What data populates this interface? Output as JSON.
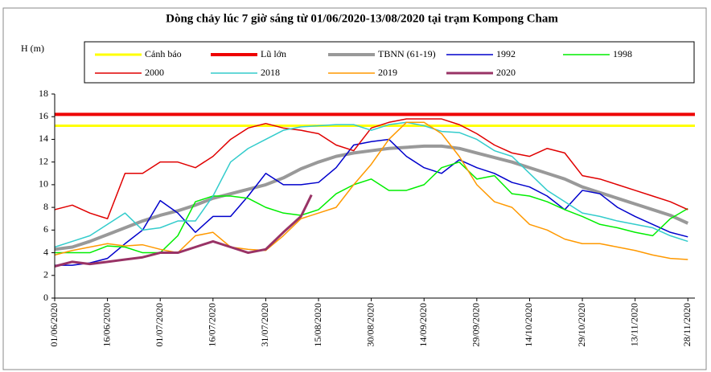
{
  "chart_data": {
    "type": "line",
    "title": "Dòng chảy lúc 7 giờ sáng từ 01/06/2020-13/08/2020 tại trạm Kompong Cham",
    "y_label": "H (m)",
    "x": [
      "2020-06-01",
      "2020-06-06",
      "2020-06-11",
      "2020-06-16",
      "2020-06-21",
      "2020-06-26",
      "2020-07-01",
      "2020-07-06",
      "2020-07-11",
      "2020-07-16",
      "2020-07-21",
      "2020-07-26",
      "2020-07-31",
      "2020-08-05",
      "2020-08-10",
      "2020-08-15",
      "2020-08-20",
      "2020-08-25",
      "2020-08-30",
      "2020-09-04",
      "2020-09-09",
      "2020-09-14",
      "2020-09-19",
      "2020-09-24",
      "2020-09-29",
      "2020-10-04",
      "2020-10-09",
      "2020-10-14",
      "2020-10-19",
      "2020-10-24",
      "2020-10-29",
      "2020-11-03",
      "2020-11-08",
      "2020-11-13",
      "2020-11-18",
      "2020-11-23",
      "2020-11-28"
    ],
    "xlim": [
      "2020-06-01",
      "2020-11-30"
    ],
    "xticks": [
      {
        "value": "2020-06-01",
        "label": "01/06/2020"
      },
      {
        "value": "2020-06-16",
        "label": "16/06/2020"
      },
      {
        "value": "2020-07-01",
        "label": "01/07/2020"
      },
      {
        "value": "2020-07-16",
        "label": "16/07/2020"
      },
      {
        "value": "2020-07-31",
        "label": "31/07/2020"
      },
      {
        "value": "2020-08-15",
        "label": "15/08/2020"
      },
      {
        "value": "2020-08-30",
        "label": "30/08/2020"
      },
      {
        "value": "2020-09-14",
        "label": "14/09/2020"
      },
      {
        "value": "2020-09-29",
        "label": "29/09/2020"
      },
      {
        "value": "2020-10-14",
        "label": "14/10/2020"
      },
      {
        "value": "2020-10-29",
        "label": "29/10/2020"
      },
      {
        "value": "2020-11-13",
        "label": "13/11/2020"
      },
      {
        "value": "2020-11-28",
        "label": "28/11/2020"
      }
    ],
    "ylim": [
      0,
      18
    ],
    "yticks": [
      0,
      2,
      4,
      6,
      8,
      10,
      12,
      14,
      16,
      18
    ],
    "grid": false,
    "series": [
      {
        "name": "Cảnh báo",
        "color": "#ffff00",
        "width": 3,
        "level": 15.2
      },
      {
        "name": "Lũ lớn",
        "color": "#ee0000",
        "width": 4,
        "level": 16.2
      },
      {
        "name": "TBNN (61-19)",
        "color": "#999999",
        "width": 4,
        "values": [
          4.3,
          4.5,
          5.0,
          5.6,
          6.2,
          6.8,
          7.3,
          7.7,
          8.2,
          8.8,
          9.2,
          9.6,
          10.0,
          10.6,
          11.4,
          12.0,
          12.5,
          12.8,
          13.0,
          13.2,
          13.3,
          13.4,
          13.4,
          13.2,
          12.8,
          12.4,
          12.0,
          11.5,
          11.0,
          10.5,
          9.8,
          9.3,
          8.8,
          8.3,
          7.8,
          7.3,
          6.6
        ]
      },
      {
        "name": "1992",
        "color": "#0000cc",
        "width": 1.5,
        "values": [
          2.9,
          2.9,
          3.1,
          3.5,
          4.8,
          6.0,
          8.6,
          7.5,
          5.8,
          7.2,
          7.2,
          9.0,
          11.0,
          10.0,
          10.0,
          10.2,
          11.5,
          13.5,
          13.8,
          14.0,
          12.5,
          11.5,
          11.0,
          12.2,
          11.5,
          11.0,
          10.2,
          9.8,
          9.0,
          7.8,
          9.5,
          9.2,
          8.0,
          7.2,
          6.5,
          5.8,
          5.4
        ]
      },
      {
        "name": "1998",
        "color": "#00ee00",
        "width": 1.5,
        "values": [
          4.0,
          4.0,
          4.0,
          4.6,
          4.5,
          4.0,
          4.0,
          5.5,
          8.5,
          9.0,
          9.0,
          8.8,
          8.0,
          7.5,
          7.3,
          7.8,
          9.2,
          10.0,
          10.5,
          9.5,
          9.5,
          10.0,
          11.5,
          12.0,
          10.5,
          10.8,
          9.2,
          9.0,
          8.5,
          7.8,
          7.2,
          6.5,
          6.2,
          5.8,
          5.5,
          7.0,
          7.9
        ]
      },
      {
        "name": "2000",
        "color": "#e00000",
        "width": 1.5,
        "values": [
          7.8,
          8.2,
          7.5,
          7.0,
          11.0,
          11.0,
          12.0,
          12.0,
          11.5,
          12.5,
          14.0,
          15.0,
          15.4,
          15.0,
          14.8,
          14.5,
          13.5,
          13.0,
          15.0,
          15.5,
          15.8,
          15.8,
          15.8,
          15.3,
          14.5,
          13.5,
          12.8,
          12.5,
          13.2,
          12.8,
          10.8,
          10.5,
          10.0,
          9.5,
          9.0,
          8.5,
          7.8
        ]
      },
      {
        "name": "2018",
        "color": "#33cccc",
        "width": 1.5,
        "values": [
          4.5,
          5.0,
          5.5,
          6.5,
          7.5,
          6.0,
          6.2,
          6.8,
          6.8,
          9.0,
          12.0,
          13.2,
          14.0,
          14.8,
          15.1,
          15.2,
          15.3,
          15.3,
          14.8,
          15.3,
          15.5,
          15.2,
          14.7,
          14.6,
          14.0,
          13.0,
          12.5,
          11.0,
          9.5,
          8.5,
          7.5,
          7.2,
          6.8,
          6.5,
          6.2,
          5.5,
          5.0
        ]
      },
      {
        "name": "2019",
        "color": "#ff9900",
        "width": 1.5,
        "values": [
          3.8,
          4.2,
          4.5,
          4.8,
          4.6,
          4.7,
          4.3,
          4.0,
          5.5,
          5.8,
          4.5,
          4.3,
          4.2,
          5.5,
          7.0,
          7.5,
          8.0,
          10.0,
          11.8,
          14.0,
          15.5,
          15.5,
          14.5,
          12.5,
          10.0,
          8.5,
          8.0,
          6.5,
          6.0,
          5.2,
          4.8,
          4.8,
          4.5,
          4.2,
          3.8,
          3.5,
          3.4
        ]
      },
      {
        "name": "2020",
        "color": "#993366",
        "width": 3,
        "x": [
          "2020-06-01",
          "2020-06-06",
          "2020-06-11",
          "2020-06-16",
          "2020-06-21",
          "2020-06-26",
          "2020-07-01",
          "2020-07-06",
          "2020-07-11",
          "2020-07-16",
          "2020-07-21",
          "2020-07-26",
          "2020-07-31",
          "2020-08-05",
          "2020-08-10",
          "2020-08-13"
        ],
        "values": [
          2.8,
          3.2,
          3.0,
          3.2,
          3.4,
          3.6,
          4.0,
          4.0,
          4.5,
          5.0,
          4.5,
          4.0,
          4.3,
          5.8,
          7.2,
          9.1
        ]
      }
    ]
  }
}
